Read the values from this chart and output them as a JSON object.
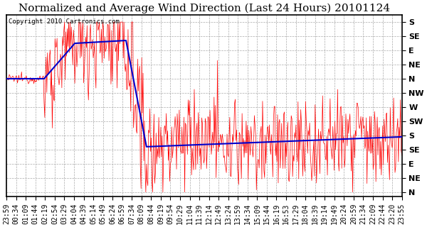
{
  "title": "Normalized and Average Wind Direction (Last 24 Hours) 20101124",
  "copyright": "Copyright 2010 Cartronics.com",
  "background_color": "#ffffff",
  "plot_bg_color": "#ffffff",
  "grid_color": "#aaaaaa",
  "y_labels": [
    "S",
    "SE",
    "E",
    "NE",
    "N",
    "NW",
    "W",
    "SW",
    "S",
    "SE",
    "E",
    "NE",
    "N"
  ],
  "y_values": [
    12,
    11,
    10,
    9,
    8,
    7,
    6,
    5,
    4,
    3,
    2,
    1,
    0
  ],
  "x_labels": [
    "23:59",
    "00:34",
    "01:09",
    "01:44",
    "02:19",
    "02:54",
    "03:29",
    "04:04",
    "04:39",
    "05:14",
    "05:49",
    "06:24",
    "06:59",
    "07:34",
    "08:09",
    "08:44",
    "09:19",
    "09:54",
    "10:29",
    "11:04",
    "11:39",
    "12:14",
    "12:49",
    "13:24",
    "13:59",
    "14:34",
    "15:09",
    "15:44",
    "16:19",
    "16:53",
    "17:29",
    "18:04",
    "18:39",
    "19:14",
    "19:49",
    "20:24",
    "20:59",
    "21:34",
    "22:09",
    "22:44",
    "23:20",
    "23:55"
  ],
  "line_color_red": "#ff0000",
  "line_color_blue": "#0000cc",
  "title_fontsize": 11,
  "axis_fontsize": 7,
  "ylabel_fontsize": 8
}
